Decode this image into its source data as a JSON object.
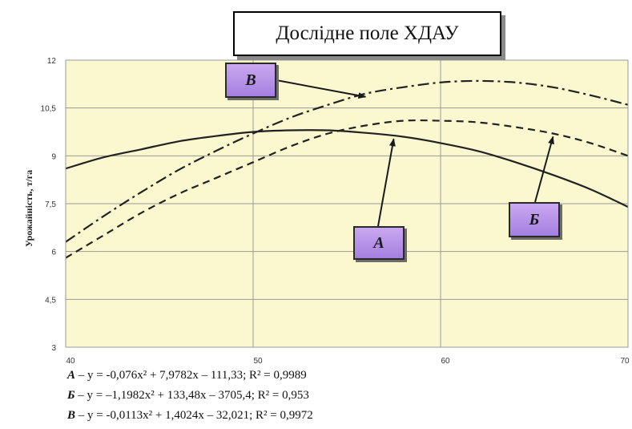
{
  "chart_data": {
    "type": "line",
    "title": "Дослідне поле ХДАУ",
    "ylabel": "Урожайність, т/га",
    "xlabel": "",
    "xlim": [
      40,
      70
    ],
    "ylim": [
      3,
      12
    ],
    "x_ticks": [
      "40",
      "50",
      "60",
      "70"
    ],
    "y_ticks": [
      "3",
      "4,5",
      "6",
      "7,5",
      "9",
      "10,5",
      "12"
    ],
    "grid": true,
    "background_color": "#fbf8d0",
    "series": [
      {
        "name": "А",
        "style": "solid",
        "color": "#222222",
        "x": [
          40,
          42,
          44,
          46,
          48,
          50,
          52,
          54,
          56,
          58,
          60,
          62,
          64,
          66,
          68,
          70
        ],
        "y": [
          8.6,
          8.95,
          9.2,
          9.45,
          9.62,
          9.75,
          9.8,
          9.8,
          9.72,
          9.6,
          9.4,
          9.15,
          8.8,
          8.4,
          7.95,
          7.4
        ]
      },
      {
        "name": "Б",
        "style": "dashed",
        "color": "#222222",
        "x": [
          40,
          42,
          44,
          46,
          48,
          50,
          52,
          54,
          56,
          58,
          60,
          62,
          64,
          66,
          68,
          70
        ],
        "y": [
          5.8,
          6.5,
          7.2,
          7.8,
          8.3,
          8.8,
          9.3,
          9.7,
          9.95,
          10.1,
          10.1,
          10.05,
          9.9,
          9.7,
          9.4,
          9.0
        ]
      },
      {
        "name": "В",
        "style": "dash-dot",
        "color": "#222222",
        "x": [
          40,
          42,
          44,
          46,
          48,
          50,
          52,
          54,
          56,
          58,
          60,
          62,
          64,
          66,
          68,
          70
        ],
        "y": [
          6.3,
          7.1,
          7.85,
          8.55,
          9.15,
          9.7,
          10.2,
          10.6,
          10.95,
          11.15,
          11.3,
          11.35,
          11.3,
          11.15,
          10.9,
          10.6
        ]
      }
    ],
    "annotations": [
      {
        "label": "В",
        "points_to": "В"
      },
      {
        "label": "А",
        "points_to": "А"
      },
      {
        "label": "Б",
        "points_to": "Б"
      }
    ],
    "equations": [
      {
        "key": "А",
        "text": " – y = -0,076x² + 7,9782x – 111,33; R² = 0,9989"
      },
      {
        "key": "Б",
        "text": " – y = –1,1982x² + 133,48x – 3705,4; R² = 0,953"
      },
      {
        "key": "В",
        "text": " – y = -0,0113x² + 1,4024x – 32,021; R² = 0,9972"
      }
    ]
  }
}
